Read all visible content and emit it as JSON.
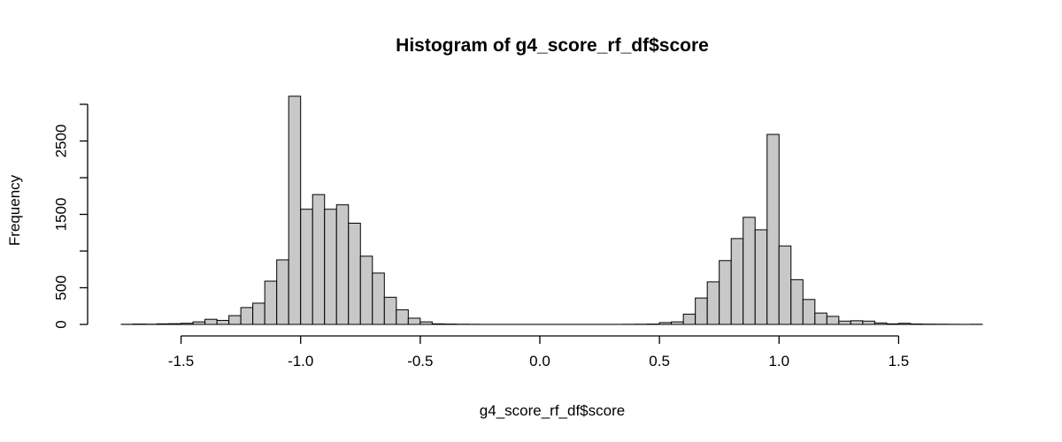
{
  "chart_data": {
    "type": "bar",
    "title": "Histogram of g4_score_rf_df$score",
    "xlabel": "g4_score_rf_df$score",
    "ylabel": "Frequency",
    "bin_width": 0.05,
    "xlim": [
      -1.75,
      1.85
    ],
    "ylim": [
      0,
      3000
    ],
    "x_ticks": [
      -1.5,
      -1.0,
      -0.5,
      0.0,
      0.5,
      1.0,
      1.5
    ],
    "x_tick_labels": [
      "-1.5",
      "-1.0",
      "-0.5",
      "0.0",
      "0.5",
      "1.0",
      "1.5"
    ],
    "y_ticks": [
      0,
      500,
      1000,
      1500,
      2000,
      2500,
      3000
    ],
    "y_tick_labels": [
      "0",
      "500",
      "",
      "1500",
      "",
      "2500",
      ""
    ],
    "bar_fill": "#c8c8c8",
    "bar_stroke": "#000000",
    "bins": [
      {
        "x0": -1.75,
        "count": 2
      },
      {
        "x0": -1.7,
        "count": 5
      },
      {
        "x0": -1.65,
        "count": 3
      },
      {
        "x0": -1.6,
        "count": 8
      },
      {
        "x0": -1.55,
        "count": 10
      },
      {
        "x0": -1.5,
        "count": 15
      },
      {
        "x0": -1.45,
        "count": 35
      },
      {
        "x0": -1.4,
        "count": 70
      },
      {
        "x0": -1.35,
        "count": 55
      },
      {
        "x0": -1.3,
        "count": 120
      },
      {
        "x0": -1.25,
        "count": 230
      },
      {
        "x0": -1.2,
        "count": 290
      },
      {
        "x0": -1.15,
        "count": 590
      },
      {
        "x0": -1.1,
        "count": 880
      },
      {
        "x0": -1.05,
        "count": 3110
      },
      {
        "x0": -1.0,
        "count": 1570
      },
      {
        "x0": -0.95,
        "count": 1770
      },
      {
        "x0": -0.9,
        "count": 1570
      },
      {
        "x0": -0.85,
        "count": 1630
      },
      {
        "x0": -0.8,
        "count": 1380
      },
      {
        "x0": -0.75,
        "count": 930
      },
      {
        "x0": -0.7,
        "count": 700
      },
      {
        "x0": -0.65,
        "count": 370
      },
      {
        "x0": -0.6,
        "count": 200
      },
      {
        "x0": -0.55,
        "count": 85
      },
      {
        "x0": -0.5,
        "count": 35
      },
      {
        "x0": -0.45,
        "count": 8
      },
      {
        "x0": -0.4,
        "count": 5
      },
      {
        "x0": -0.35,
        "count": 3
      },
      {
        "x0": -0.3,
        "count": 2
      },
      {
        "x0": -0.25,
        "count": 1
      },
      {
        "x0": -0.2,
        "count": 1
      },
      {
        "x0": -0.15,
        "count": 1
      },
      {
        "x0": -0.1,
        "count": 1
      },
      {
        "x0": -0.05,
        "count": 1
      },
      {
        "x0": 0.0,
        "count": 1
      },
      {
        "x0": 0.05,
        "count": 1
      },
      {
        "x0": 0.1,
        "count": 1
      },
      {
        "x0": 0.15,
        "count": 1
      },
      {
        "x0": 0.2,
        "count": 1
      },
      {
        "x0": 0.25,
        "count": 1
      },
      {
        "x0": 0.3,
        "count": 1
      },
      {
        "x0": 0.35,
        "count": 2
      },
      {
        "x0": 0.4,
        "count": 3
      },
      {
        "x0": 0.45,
        "count": 5
      },
      {
        "x0": 0.5,
        "count": 25
      },
      {
        "x0": 0.55,
        "count": 35
      },
      {
        "x0": 0.6,
        "count": 140
      },
      {
        "x0": 0.65,
        "count": 360
      },
      {
        "x0": 0.7,
        "count": 580
      },
      {
        "x0": 0.75,
        "count": 870
      },
      {
        "x0": 0.8,
        "count": 1170
      },
      {
        "x0": 0.85,
        "count": 1460
      },
      {
        "x0": 0.9,
        "count": 1290
      },
      {
        "x0": 0.95,
        "count": 2590
      },
      {
        "x0": 1.0,
        "count": 1070
      },
      {
        "x0": 1.05,
        "count": 610
      },
      {
        "x0": 1.1,
        "count": 340
      },
      {
        "x0": 1.15,
        "count": 155
      },
      {
        "x0": 1.2,
        "count": 110
      },
      {
        "x0": 1.25,
        "count": 45
      },
      {
        "x0": 1.3,
        "count": 50
      },
      {
        "x0": 1.35,
        "count": 45
      },
      {
        "x0": 1.4,
        "count": 20
      },
      {
        "x0": 1.45,
        "count": 8
      },
      {
        "x0": 1.5,
        "count": 15
      },
      {
        "x0": 1.55,
        "count": 6
      },
      {
        "x0": 1.6,
        "count": 4
      },
      {
        "x0": 1.65,
        "count": 3
      },
      {
        "x0": 1.7,
        "count": 2
      },
      {
        "x0": 1.75,
        "count": 1
      },
      {
        "x0": 1.8,
        "count": 2
      }
    ]
  }
}
